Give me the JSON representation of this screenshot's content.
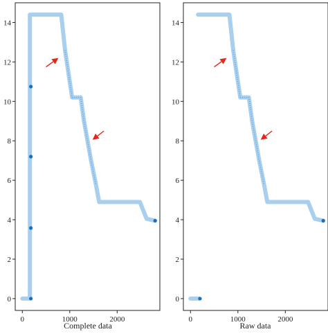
{
  "chart_data": [
    {
      "type": "scatter",
      "xlabel": "Complete data",
      "ylabel": "",
      "xlim": [
        -150,
        2900
      ],
      "ylim": [
        -0.6,
        15.0
      ],
      "xticks": [
        0,
        1000,
        2000
      ],
      "yticks": [
        0,
        2,
        4,
        6,
        8,
        10,
        12,
        14
      ],
      "grid": false,
      "legend": "none",
      "colors": {
        "band": "#a9cfee",
        "point": "#1f6fb4",
        "arrow": "#e3271b"
      },
      "band_path": [
        [
          0,
          0
        ],
        [
          160,
          0
        ],
        [
          160,
          14.4
        ],
        [
          820,
          14.4
        ],
        [
          820,
          14.4
        ],
        [
          900,
          12.6
        ],
        [
          1000,
          11.0
        ],
        [
          1050,
          10.2
        ],
        [
          1230,
          10.2
        ],
        [
          1300,
          9.0
        ],
        [
          1450,
          7.0
        ],
        [
          1550,
          5.8
        ],
        [
          1620,
          4.9
        ],
        [
          2480,
          4.9
        ],
        [
          2620,
          4.05
        ],
        [
          2800,
          3.95
        ]
      ],
      "outliers": [
        {
          "x": 180,
          "y": 10.75
        },
        {
          "x": 180,
          "y": 7.2
        },
        {
          "x": 180,
          "y": 3.58
        },
        {
          "x": 180,
          "y": 0.0
        },
        {
          "x": 2800,
          "y": 3.95
        }
      ],
      "arrows": [
        {
          "from": [
            500,
            11.75
          ],
          "to": [
            760,
            12.2
          ]
        },
        {
          "from": [
            1720,
            8.5
          ],
          "to": [
            1480,
            8.05
          ]
        }
      ]
    },
    {
      "type": "scatter",
      "xlabel": "Raw data",
      "ylabel": "",
      "xlim": [
        -150,
        2900
      ],
      "ylim": [
        -0.6,
        15.0
      ],
      "xticks": [
        0,
        1000,
        2000
      ],
      "yticks": [
        0,
        2,
        4,
        6,
        8,
        10,
        12,
        14
      ],
      "grid": false,
      "legend": "none",
      "colors": {
        "band": "#a9cfee",
        "point": "#1f6fb4",
        "arrow": "#e3271b"
      },
      "band_path": [
        [
          0,
          0
        ],
        [
          180,
          0
        ]
      ],
      "band_path_2": [
        [
          160,
          14.4
        ],
        [
          820,
          14.4
        ],
        [
          900,
          12.6
        ],
        [
          1000,
          11.0
        ],
        [
          1050,
          10.2
        ],
        [
          1230,
          10.2
        ],
        [
          1300,
          9.0
        ],
        [
          1450,
          7.0
        ],
        [
          1550,
          5.8
        ],
        [
          1620,
          4.9
        ],
        [
          2480,
          4.9
        ],
        [
          2620,
          4.05
        ],
        [
          2800,
          3.95
        ]
      ],
      "outliers": [
        {
          "x": 200,
          "y": 0.0
        },
        {
          "x": 2800,
          "y": 3.95
        }
      ],
      "arrows": [
        {
          "from": [
            500,
            11.75
          ],
          "to": [
            760,
            12.2
          ]
        },
        {
          "from": [
            1720,
            8.5
          ],
          "to": [
            1480,
            8.05
          ]
        }
      ]
    }
  ]
}
